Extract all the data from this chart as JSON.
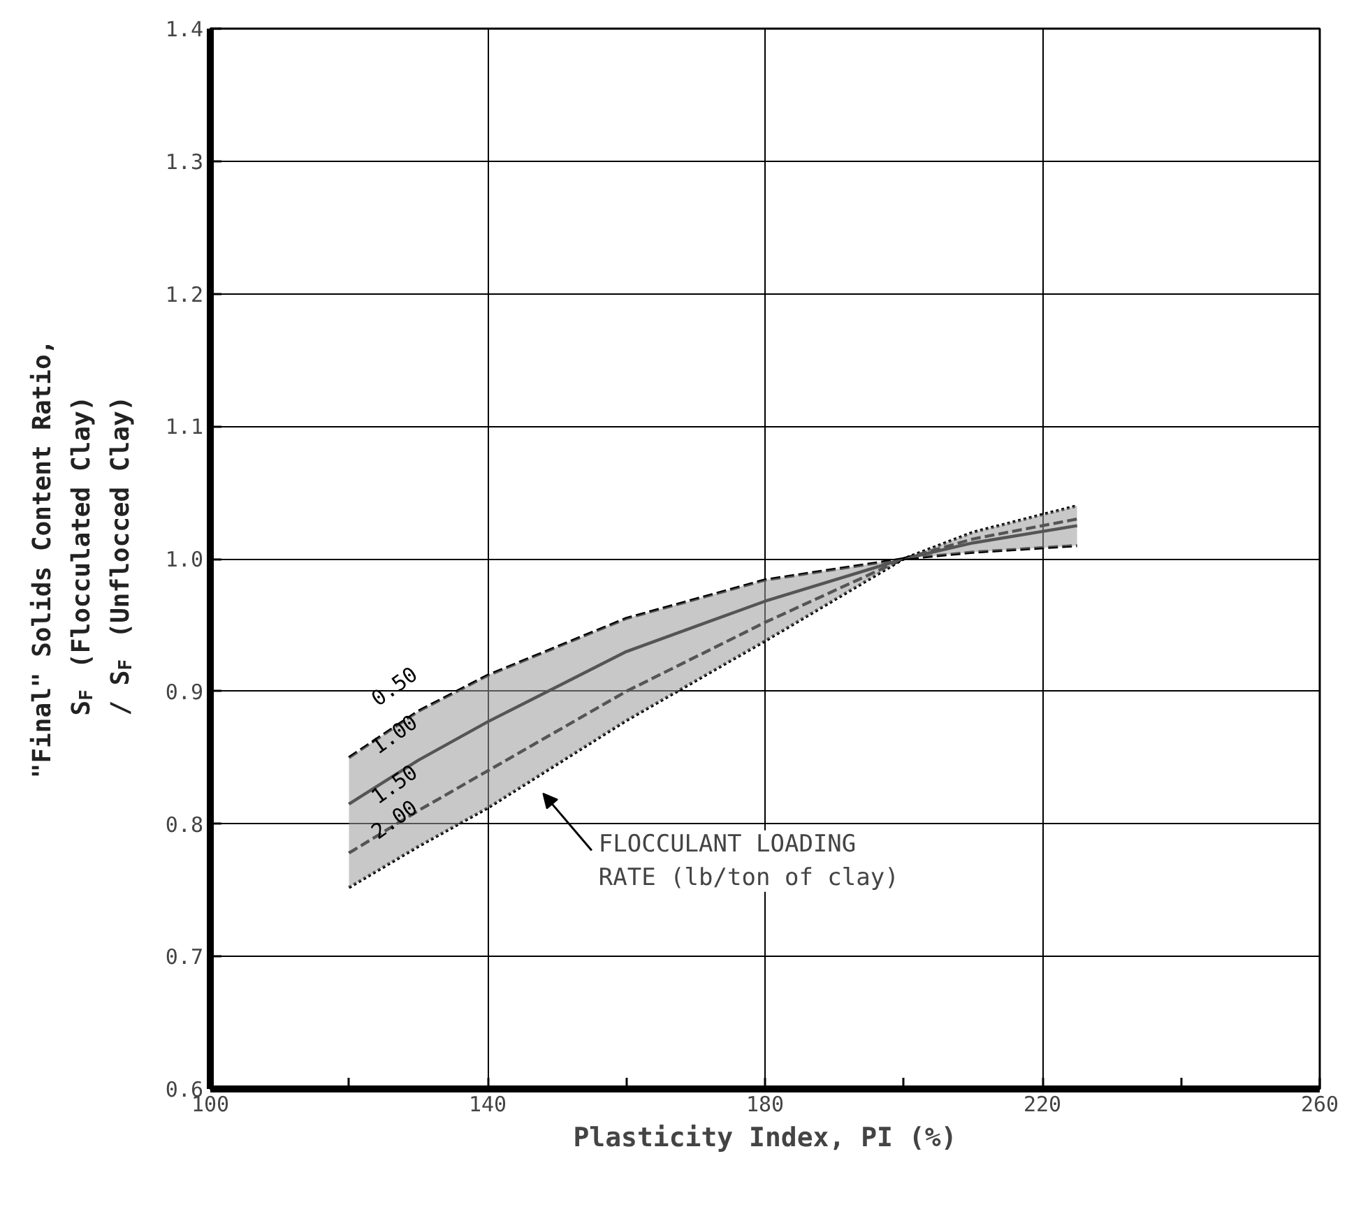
{
  "chart_data": {
    "type": "line",
    "xlabel": "Plasticity Index, PI (%)",
    "ylabel": "\"Final\" Solids Content Ratio, S$_{F}$ (Flocculated Clay) / S$_{F}$ (Unflocced Clay)",
    "x": [
      120,
      130,
      140,
      160,
      180,
      200,
      210,
      225
    ],
    "series": [
      {
        "name": "0.50",
        "color": "#000000",
        "line_style": "dashed",
        "values": [
          0.85,
          0.885,
          0.912,
          0.955,
          0.984,
          1.0,
          1.005,
          1.01
        ]
      },
      {
        "name": "1.00",
        "color": "#000000",
        "line_style": "solid",
        "values": [
          0.815,
          0.848,
          0.877,
          0.93,
          0.968,
          1.0,
          1.012,
          1.025
        ],
        "lower": [
          0.752,
          0.783,
          0.812,
          0.878,
          0.938,
          1.0,
          1.02,
          1.04
        ],
        "upper": [
          0.85,
          0.885,
          0.912,
          0.955,
          0.984,
          1.0,
          1.005,
          1.01
        ]
      },
      {
        "name": "1.50",
        "color": "#000000",
        "line_style": "dashed",
        "values": [
          0.778,
          0.81,
          0.84,
          0.9,
          0.952,
          1.0,
          1.015,
          1.03
        ]
      },
      {
        "name": "2.00",
        "color": "#000000",
        "line_style": "dotted",
        "values": [
          0.752,
          0.783,
          0.812,
          0.878,
          0.938,
          1.0,
          1.02,
          1.04
        ]
      }
    ],
    "annotations": [
      "FLOCCULANT LOADING RATE (lb/ton of clay)"
    ],
    "xlim": [
      100,
      260
    ],
    "xticks": [
      100,
      {
        "value": 120,
        "label": null
      },
      140,
      {
        "value": 160,
        "label": null
      },
      180,
      {
        "value": 200,
        "label": null
      },
      220,
      {
        "value": 240,
        "label": null
      },
      260
    ],
    "ylim": [
      0.6,
      1.4
    ],
    "yticks": [
      0.6,
      0.7,
      0.8,
      0.9,
      {
        "value": 1.0,
        "label": "1.0"
      },
      1.1,
      1.2,
      1.3,
      1.4
    ],
    "grid": true,
    "marker": "none"
  }
}
